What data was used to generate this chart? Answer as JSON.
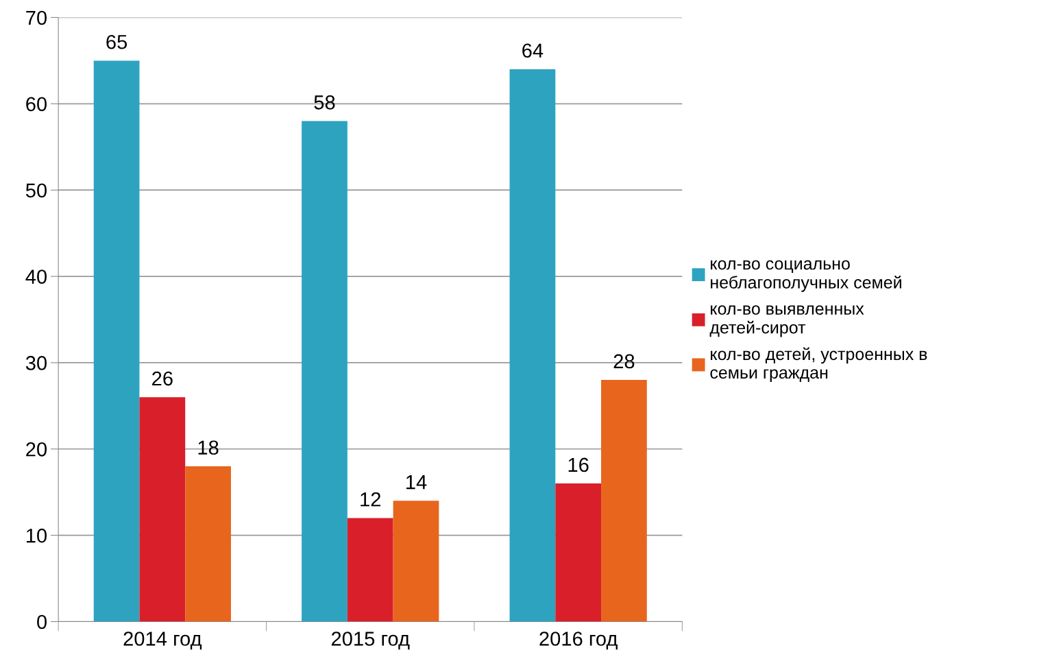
{
  "chart_data": {
    "type": "bar",
    "categories": [
      "2014 год",
      "2015 год",
      "2016 год"
    ],
    "series": [
      {
        "name": "кол-во социально неблагополучных семей",
        "color": "#2ea3c0",
        "values": [
          65,
          58,
          64
        ]
      },
      {
        "name": "кол-во выявленных детей-сирот",
        "color": "#d9202a",
        "values": [
          26,
          12,
          16
        ]
      },
      {
        "name": "кол-во детей, устроенных в семьи граждан",
        "color": "#e8651e",
        "values": [
          18,
          14,
          28
        ]
      }
    ],
    "ylim": [
      0,
      70
    ],
    "yticks": [
      0,
      10,
      20,
      30,
      40,
      50,
      60,
      70
    ],
    "grid": "y",
    "legend": "right",
    "data_labels": true
  }
}
